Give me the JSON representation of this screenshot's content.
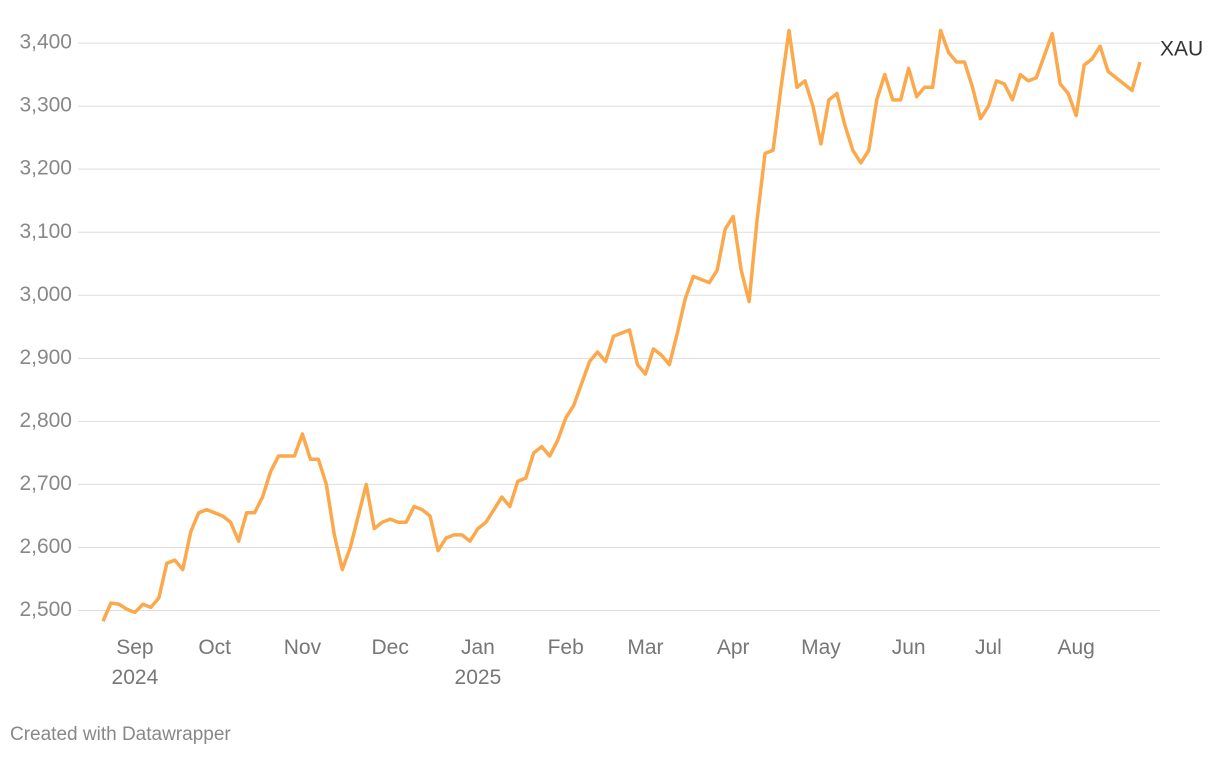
{
  "chart_data": {
    "type": "line",
    "categories": [
      null,
      null,
      null,
      null,
      "Sep 2024",
      null,
      null,
      null,
      null,
      null,
      null,
      null,
      null,
      null,
      "Oct",
      null,
      null,
      null,
      null,
      null,
      null,
      null,
      null,
      null,
      null,
      "Nov",
      null,
      null,
      null,
      null,
      null,
      null,
      null,
      null,
      null,
      null,
      "Dec",
      null,
      null,
      null,
      null,
      null,
      null,
      null,
      null,
      null,
      null,
      "Jan 2025",
      null,
      null,
      null,
      null,
      null,
      null,
      null,
      null,
      null,
      null,
      "Feb",
      null,
      null,
      null,
      null,
      null,
      null,
      null,
      null,
      null,
      "Mar",
      null,
      null,
      null,
      null,
      null,
      null,
      null,
      null,
      null,
      null,
      "Apr",
      null,
      null,
      null,
      null,
      null,
      null,
      null,
      null,
      null,
      null,
      "May",
      null,
      null,
      null,
      null,
      null,
      null,
      null,
      null,
      null,
      null,
      "Jun",
      null,
      null,
      null,
      null,
      null,
      null,
      null,
      null,
      null,
      "Jul",
      null,
      null,
      null,
      null,
      null,
      null,
      null,
      null,
      null,
      null,
      "Aug",
      null,
      null,
      null,
      null,
      null,
      null,
      null,
      null
    ],
    "series": [
      {
        "name": "XAU",
        "color": "#fba94c",
        "values": [
          2483,
          2512,
          2510,
          2502,
          2497,
          2510,
          2505,
          2520,
          2575,
          2580,
          2565,
          2625,
          2655,
          2660,
          2655,
          2650,
          2640,
          2610,
          2655,
          2655,
          2680,
          2720,
          2745,
          2745,
          2745,
          2780,
          2740,
          2740,
          2700,
          2620,
          2565,
          2600,
          2650,
          2700,
          2630,
          2640,
          2645,
          2640,
          2640,
          2665,
          2660,
          2650,
          2595,
          2615,
          2620,
          2620,
          2610,
          2630,
          2640,
          2660,
          2680,
          2665,
          2705,
          2710,
          2750,
          2760,
          2745,
          2770,
          2805,
          2825,
          2860,
          2895,
          2910,
          2895,
          2935,
          2940,
          2945,
          2890,
          2875,
          2915,
          2905,
          2890,
          2940,
          2995,
          3030,
          3025,
          3020,
          3040,
          3105,
          3125,
          3040,
          2990,
          3120,
          3225,
          3230,
          3330,
          3420,
          3330,
          3340,
          3300,
          3240,
          3310,
          3320,
          3270,
          3230,
          3210,
          3230,
          3310,
          3350,
          3310,
          3310,
          3360,
          3315,
          3330,
          3330,
          3420,
          3385,
          3370,
          3370,
          3330,
          3280,
          3300,
          3340,
          3335,
          3310,
          3350,
          3340,
          3345,
          3380,
          3415,
          3335,
          3320,
          3285,
          3365,
          3375,
          3395,
          3355,
          3345,
          3335,
          3325,
          3370
        ]
      }
    ],
    "ylim": [
      2485,
      3435
    ],
    "yticks": [
      {
        "value": 2500,
        "label": "2,500"
      },
      {
        "value": 2600,
        "label": "2,600"
      },
      {
        "value": 2700,
        "label": "2,700"
      },
      {
        "value": 2800,
        "label": "2,800"
      },
      {
        "value": 2900,
        "label": "2,900"
      },
      {
        "value": 3000,
        "label": "3,000"
      },
      {
        "value": 3100,
        "label": "3,100"
      },
      {
        "value": 3200,
        "label": "3,200"
      },
      {
        "value": 3300,
        "label": "3,300"
      },
      {
        "value": 3400,
        "label": "3,400"
      }
    ],
    "grid": true,
    "footer": "Created with Datawrapper"
  }
}
